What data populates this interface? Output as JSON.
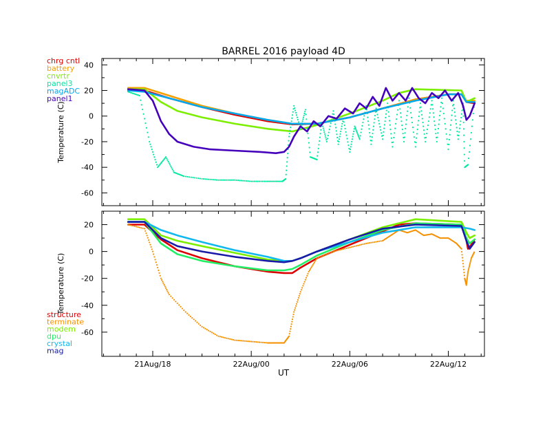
{
  "chart_data": {
    "type": "line",
    "title": "BARREL 2016 payload 4D",
    "xlabel": "UT",
    "x_ticks": [
      "21Aug/18",
      "22Aug/00",
      "22Aug/06",
      "22Aug/12"
    ],
    "xlim": [
      14.9,
      38.2
    ],
    "panels": [
      {
        "ylabel": "Temperature (C)",
        "ylim": [
          -70,
          45
        ],
        "yticks": [
          {
            "value": 40,
            "label": "40"
          },
          {
            "value": 20,
            "label": "20"
          },
          {
            "value": 0,
            "label": "0"
          },
          {
            "value": -20,
            "label": "-20"
          },
          {
            "value": -40,
            "label": "-40"
          },
          {
            "value": -60,
            "label": "-60"
          }
        ],
        "legend_position": "top-left",
        "series": [
          {
            "name": "chrg cntl",
            "color": "#dd0000",
            "style": "line",
            "x": [
              16.5,
              17.5,
              19,
              21,
              23,
              25,
              26.5,
              28,
              30,
              32,
              34,
              36,
              36.8,
              37.1,
              37.6
            ],
            "y": [
              20,
              20,
              14,
              7,
              1,
              -4,
              -6.5,
              -6,
              -1,
              6,
              13,
              17,
              17,
              11,
              10
            ]
          },
          {
            "name": "battery",
            "color": "#f5a000",
            "style": "line",
            "x": [
              16.5,
              17.5,
              19,
              21,
              23,
              25,
              26.5,
              28,
              30,
              32,
              34,
              36,
              36.8,
              37.1,
              37.6
            ],
            "y": [
              22,
              22,
              16,
              8,
              2,
              -3,
              -6,
              -6,
              -1,
              6,
              13,
              17,
              17,
              12,
              12
            ]
          },
          {
            "name": "cnvrtr",
            "color": "#7cee00",
            "style": "line",
            "x": [
              16.5,
              17.5,
              18.5,
              19.5,
              21,
              23,
              25,
              26.5,
              28,
              30,
              32,
              33,
              34,
              36.8,
              37.1,
              37.6
            ],
            "y": [
              21,
              21,
              11,
              4,
              -1,
              -6,
              -10,
              -12,
              -7,
              2,
              12,
              18,
              21,
              20,
              11,
              14
            ]
          },
          {
            "name": "panel3",
            "color": "#00e8a0",
            "style": "dots",
            "x": [
              16.5,
              17.2,
              17.8,
              18.3,
              18.8,
              19.3,
              19.9,
              21,
              22,
              23,
              24,
              25,
              25.9,
              26.1,
              26.3,
              26.6,
              27,
              27.3,
              27.6,
              28,
              28.3,
              28.6,
              29,
              29.3,
              29.6,
              30,
              30.3,
              30.6,
              31,
              31.3,
              31.6,
              32,
              32.3,
              32.6,
              33,
              33.3,
              33.6,
              34,
              34.3,
              34.6,
              35,
              35.3,
              35.6,
              36,
              36.3,
              36.6,
              36.9,
              37,
              37.2,
              37.6
            ],
            "y": [
              19,
              16,
              -20,
              -40,
              -32,
              -44,
              -47,
              -49,
              -50,
              -50,
              -51,
              -51,
              -51,
              -49,
              -16,
              8,
              -10,
              5,
              -32,
              -34,
              -5,
              -20,
              4,
              -22,
              -2,
              -28,
              -8,
              -18,
              8,
              -22,
              6,
              -18,
              10,
              -24,
              12,
              -20,
              14,
              -24,
              10,
              -20,
              12,
              -20,
              14,
              -26,
              12,
              -18,
              10,
              -40,
              -38,
              12
            ]
          },
          {
            "name": "magADC",
            "color": "#00a8ee",
            "style": "line",
            "x": [
              16.5,
              17.5,
              19,
              21,
              23,
              25,
              26.5,
              28,
              30,
              32,
              34,
              36,
              36.8,
              37.1,
              37.6
            ],
            "y": [
              20,
              19,
              14,
              7,
              2,
              -3,
              -6,
              -6,
              -1,
              6,
              12,
              17,
              17,
              11,
              11
            ]
          },
          {
            "name": "panel1",
            "color": "#4400bb",
            "style": "line",
            "x": [
              16.5,
              17.5,
              18,
              18.5,
              19,
              19.5,
              20.5,
              21.5,
              23,
              24.5,
              25.5,
              26,
              26.3,
              26.6,
              27,
              27.4,
              27.8,
              28.2,
              28.7,
              29.2,
              29.7,
              30.2,
              30.6,
              31,
              31.4,
              31.8,
              32.2,
              32.6,
              33,
              33.4,
              33.8,
              34.2,
              34.6,
              35,
              35.4,
              35.8,
              36.2,
              36.6,
              36.9,
              37.1,
              37.3,
              37.6
            ],
            "y": [
              21,
              20,
              12,
              -4,
              -14,
              -20,
              -24,
              -26,
              -27,
              -28,
              -29,
              -28,
              -24,
              -16,
              -8,
              -12,
              -4,
              -8,
              0,
              -2,
              6,
              2,
              10,
              6,
              15,
              8,
              22,
              12,
              18,
              12,
              22,
              14,
              10,
              18,
              14,
              20,
              12,
              18,
              8,
              -3,
              0,
              10
            ]
          }
        ]
      },
      {
        "ylabel": "Temperature (C)",
        "ylim": [
          -78,
          30
        ],
        "yticks": [
          {
            "value": 20,
            "label": "20"
          },
          {
            "value": 0,
            "label": "0"
          },
          {
            "value": -20,
            "label": "-20"
          },
          {
            "value": -40,
            "label": "-40"
          },
          {
            "value": -60,
            "label": "-60"
          }
        ],
        "legend_position": "bottom-left",
        "series": [
          {
            "name": "structure",
            "color": "#dd0000",
            "style": "line",
            "x": [
              16.5,
              17.5,
              18.5,
              19.5,
              21,
              23,
              25,
              26,
              26.5,
              27,
              28,
              30,
              32,
              33,
              34,
              36.8,
              37.1,
              37.2,
              37.4,
              37.6
            ],
            "y": [
              20,
              20,
              9,
              1,
              -5,
              -11,
              -15,
              -16,
              -16,
              -12,
              -5,
              5,
              15,
              20,
              21,
              20,
              8,
              2,
              5,
              9
            ]
          },
          {
            "name": "terminate",
            "color": "#f59000",
            "style": "dots",
            "x": [
              16.5,
              17.5,
              18,
              18.5,
              19,
              20,
              21,
              22,
              23,
              24,
              25,
              25.5,
              26,
              26.3,
              26.6,
              27,
              27.5,
              28,
              29,
              30,
              31,
              32,
              32.5,
              33,
              33.5,
              34,
              34.5,
              35,
              35.5,
              36,
              36.5,
              36.8,
              37,
              37.1,
              37.2,
              37.4,
              37.6
            ],
            "y": [
              20,
              17,
              0,
              -20,
              -32,
              -45,
              -56,
              -63,
              -66,
              -67,
              -68,
              -68,
              -68,
              -63,
              -45,
              -30,
              -15,
              -5,
              0,
              3,
              6,
              8,
              12,
              16,
              14,
              16,
              12,
              13,
              10,
              10,
              6,
              2,
              -20,
              -25,
              -15,
              -5,
              0
            ]
          },
          {
            "name": "modem",
            "color": "#7cee00",
            "style": "line",
            "x": [
              16.5,
              17.5,
              18.5,
              19.5,
              21,
              23,
              25,
              26,
              26.5,
              27,
              28,
              30,
              32,
              34,
              36.8,
              37.1,
              37.3,
              37.6
            ],
            "y": [
              24,
              24,
              12,
              8,
              4,
              -1,
              -6,
              -7,
              -7,
              -5,
              0,
              9,
              18,
              24,
              22,
              14,
              10,
              12
            ]
          },
          {
            "name": "dpu",
            "color": "#22ee66",
            "style": "line",
            "x": [
              16.5,
              17.5,
              18.5,
              19.5,
              21,
              23,
              25,
              26,
              26.5,
              27,
              28,
              30,
              32,
              34,
              36.8,
              37.1,
              37.3,
              37.6
            ],
            "y": [
              22,
              22,
              6,
              -2,
              -7,
              -11,
              -14,
              -14,
              -13,
              -10,
              -3,
              7,
              16,
              21,
              20,
              10,
              6,
              9
            ]
          },
          {
            "name": "crystal",
            "color": "#10b8ee",
            "style": "line",
            "x": [
              16.5,
              17.5,
              18.5,
              19.5,
              21,
              23,
              25,
              26,
              26.5,
              27,
              28,
              30,
              32,
              34,
              36.8,
              37.3,
              37.6
            ],
            "y": [
              22,
              22,
              16,
              12,
              7,
              1,
              -4,
              -7,
              -7,
              -5,
              0,
              7,
              14,
              18,
              18,
              17,
              16
            ]
          },
          {
            "name": "mag",
            "color": "#1a1aa8",
            "style": "line",
            "x": [
              16.5,
              17.5,
              18.5,
              19.5,
              21,
              23,
              25,
              26,
              26.5,
              27,
              28,
              30,
              32,
              34,
              36.8,
              37.1,
              37.3,
              37.6
            ],
            "y": [
              22,
              22,
              10,
              4,
              0,
              -4,
              -7,
              -8,
              -7,
              -5,
              0,
              9,
              17,
              20,
              19,
              8,
              2,
              7
            ]
          }
        ]
      }
    ]
  }
}
